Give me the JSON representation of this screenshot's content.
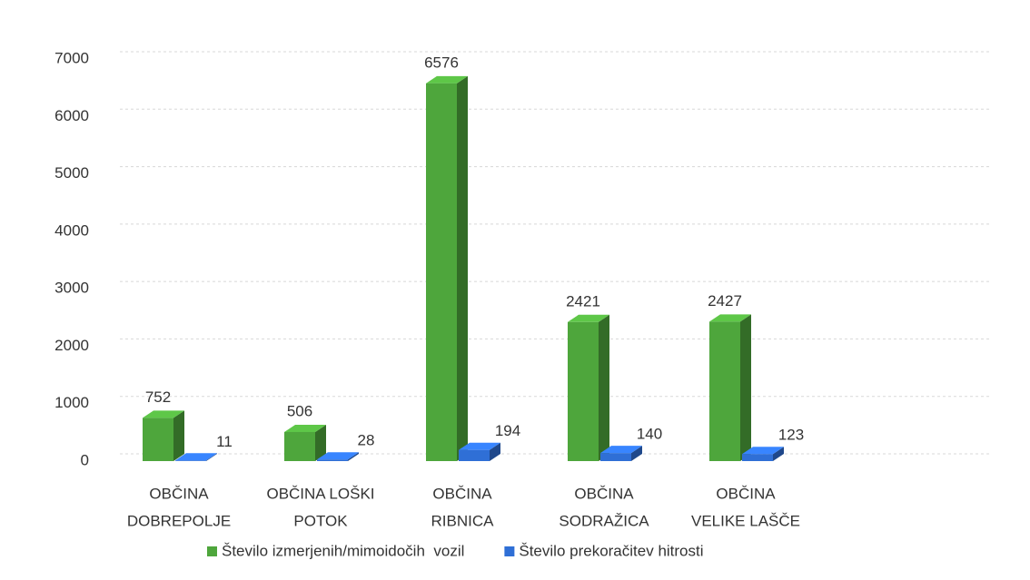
{
  "chart_data": {
    "type": "bar",
    "categories": [
      [
        "OBČINA",
        "DOBREPOLJE"
      ],
      [
        "OBČINA LOŠKI",
        "POTOK"
      ],
      [
        "OBČINA",
        "RIBNICA"
      ],
      [
        "OBČINA",
        "SODRAŽICA"
      ],
      [
        "OBČINA",
        "VELIKE LAŠČE"
      ]
    ],
    "series": [
      {
        "name": "Število izmerjenih/mimoidočih  vozil",
        "color": "#4ea63c",
        "values": [
          752,
          506,
          6576,
          2421,
          2427
        ]
      },
      {
        "name": "Število prekoračitev hitrosti",
        "color": "#2f6fd6",
        "values": [
          11,
          28,
          194,
          140,
          123
        ]
      }
    ],
    "ylim": [
      0,
      7000
    ],
    "yticks": [
      0,
      1000,
      2000,
      3000,
      4000,
      5000,
      6000,
      7000
    ],
    "grid": true
  }
}
